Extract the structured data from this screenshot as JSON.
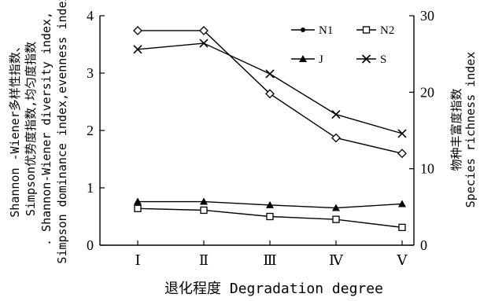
{
  "chart_data": {
    "type": "line",
    "categories": [
      "Ⅰ",
      "Ⅱ",
      "Ⅲ",
      "Ⅳ",
      "Ⅴ"
    ],
    "xlabel": "退化程度 Degradation degree",
    "ylabel_left": [
      "Shannon -Wiener多样性指数、",
      "Simpson优势度指数,均匀度指数",
      ". Shannon-Wiener  diversity  index,",
      "Simpson dominance index,evenness index"
    ],
    "ylabel_right": [
      "物种丰富度指数",
      "Species richness index"
    ],
    "y_left": {
      "lim": [
        0,
        4
      ],
      "ticks": [
        "0",
        "1",
        "2",
        "3",
        "4"
      ]
    },
    "y_right": {
      "lim": [
        0,
        30
      ],
      "ticks": [
        "0",
        "10",
        "20",
        "30"
      ]
    },
    "series": [
      {
        "name": "N1",
        "axis": "left",
        "marker": "filled-circle",
        "values": [
          3.74,
          3.74,
          2.64,
          1.87,
          1.6
        ]
      },
      {
        "name": "N2",
        "axis": "left",
        "marker": "open-square",
        "values": [
          0.64,
          0.61,
          0.5,
          0.45,
          0.31
        ]
      },
      {
        "name": "J",
        "axis": "left",
        "marker": "filled-triangle",
        "values": [
          0.76,
          0.76,
          0.7,
          0.65,
          0.72
        ]
      },
      {
        "name": "S",
        "axis": "right",
        "marker": "x-cross",
        "values": [
          25.6,
          26.4,
          22.4,
          17.1,
          14.6
        ]
      }
    ],
    "plotted_markers_note": "",
    "legend_position": "top-right",
    "grid": false
  }
}
